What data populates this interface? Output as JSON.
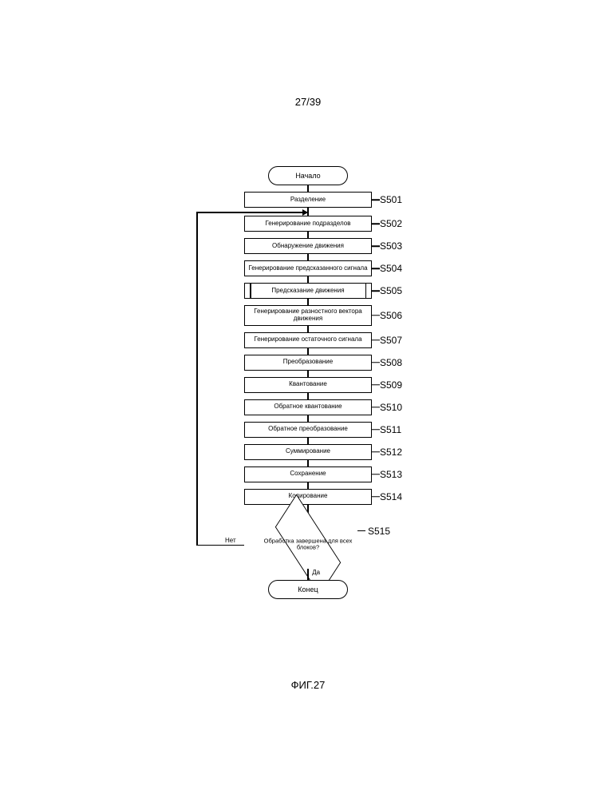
{
  "page_number": "27/39",
  "figure_caption": "ФИГ.27",
  "colors": {
    "stroke": "#000000",
    "background": "#ffffff",
    "text": "#000000"
  },
  "flowchart": {
    "type": "flowchart",
    "start": "Начало",
    "end": "Конец",
    "steps": [
      {
        "id": "S501",
        "label": "Разделение",
        "sub": false
      },
      {
        "id": "S502",
        "label": "Генерирование подразделов",
        "sub": false
      },
      {
        "id": "S503",
        "label": "Обнаружение движения",
        "sub": false
      },
      {
        "id": "S504",
        "label": "Генерирование предсказанного сигнала",
        "sub": false
      },
      {
        "id": "S505",
        "label": "Предсказание движения",
        "sub": true
      },
      {
        "id": "S506",
        "label": "Генерирование разностного вектора движения",
        "sub": false
      },
      {
        "id": "S507",
        "label": "Генерирование остаточного сигнала",
        "sub": false
      },
      {
        "id": "S508",
        "label": "Преобразование",
        "sub": false
      },
      {
        "id": "S509",
        "label": "Квантование",
        "sub": false
      },
      {
        "id": "S510",
        "label": "Обратное квантование",
        "sub": false
      },
      {
        "id": "S511",
        "label": "Обратное преобразование",
        "sub": false
      },
      {
        "id": "S512",
        "label": "Суммирование",
        "sub": false
      },
      {
        "id": "S513",
        "label": "Сохранение",
        "sub": false
      },
      {
        "id": "S514",
        "label": "Кодирование",
        "sub": false
      }
    ],
    "decision": {
      "id": "S515",
      "label": "Обработка завершена для всех блоков?",
      "no": "Нет",
      "yes": "Да"
    }
  }
}
